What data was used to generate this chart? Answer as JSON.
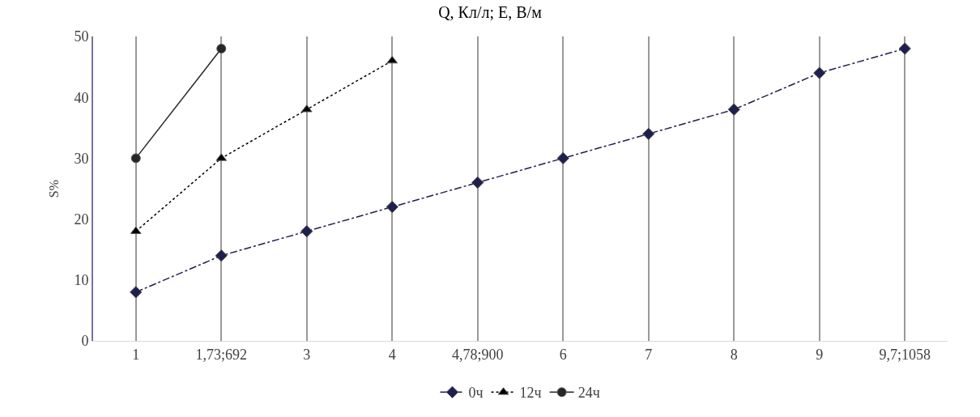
{
  "chart_data": {
    "type": "line",
    "title": "Q, Кл/л; E, В/м",
    "ylabel": "S%",
    "categories": [
      "1",
      "1,73;692",
      "3",
      "4",
      "4,78;900",
      "6",
      "7",
      "8",
      "9",
      "9,7;1058"
    ],
    "ylim": [
      0,
      50
    ],
    "yticks": [
      0,
      10,
      20,
      30,
      40,
      50
    ],
    "grid": "x",
    "legend": "bottom",
    "series": [
      {
        "name": "0ч",
        "color": "#1f1f4f",
        "marker": "diamond",
        "line_style": "dashed",
        "values": [
          8,
          14,
          18,
          22,
          26,
          30,
          34,
          38,
          44,
          48
        ]
      },
      {
        "name": "12ч",
        "color": "#000000",
        "marker": "triangle",
        "line_style": "dotted",
        "values": [
          18,
          30,
          38,
          46,
          null,
          null,
          null,
          null,
          null,
          null
        ]
      },
      {
        "name": "24ч",
        "color": "#262626",
        "marker": "circle",
        "line_style": "solid",
        "values": [
          30,
          48,
          null,
          null,
          null,
          null,
          null,
          null,
          null,
          null
        ]
      }
    ]
  }
}
